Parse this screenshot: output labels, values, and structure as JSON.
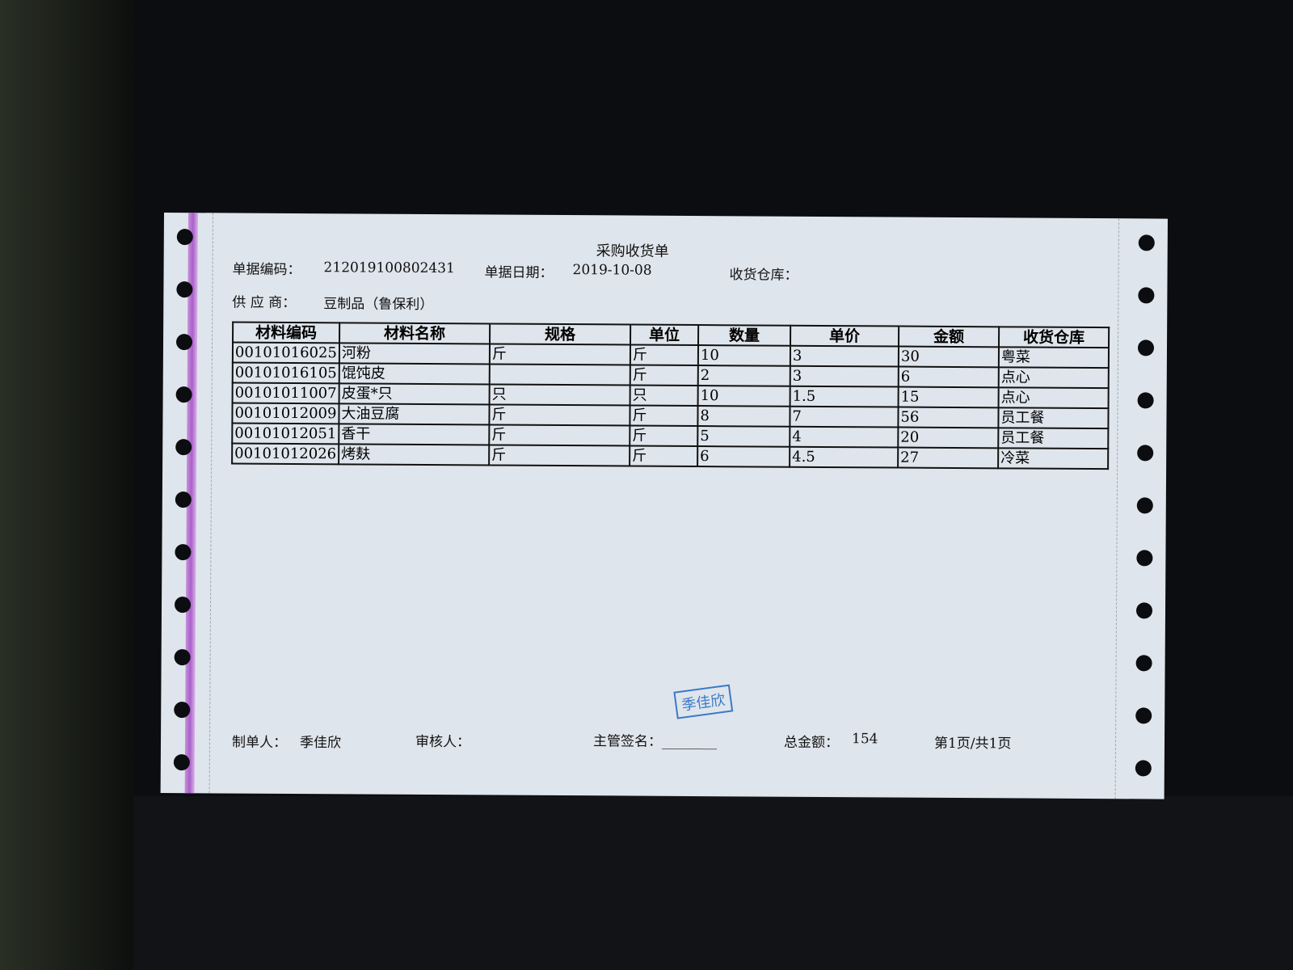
{
  "document": {
    "title": "采购收货单",
    "doc_no_label": "单据编码：",
    "doc_no": "212019100802431",
    "date_label": "单据日期：",
    "date": "2019-10-08",
    "warehouse_label": "收货仓库：",
    "supplier_label": "供 应 商：",
    "supplier": "豆制品（鲁保利）",
    "table": {
      "headers": [
        "材料编码",
        "材料名称",
        "规格",
        "单位",
        "数量",
        "单价",
        "金额",
        "收货仓库"
      ],
      "rows": [
        [
          "00101016025",
          "河粉",
          "斤",
          "斤",
          "10",
          "3",
          "30",
          "粤菜"
        ],
        [
          "00101016105",
          "馄饨皮",
          "",
          "斤",
          "2",
          "3",
          "6",
          "点心"
        ],
        [
          "00101011007",
          "皮蛋*只",
          "只",
          "只",
          "10",
          "1.5",
          "15",
          "点心"
        ],
        [
          "00101012009",
          "大油豆腐",
          "斤",
          "斤",
          "8",
          "7",
          "56",
          "员工餐"
        ],
        [
          "00101012051",
          "香干",
          "斤",
          "斤",
          "5",
          "4",
          "20",
          "员工餐"
        ],
        [
          "00101012026",
          "烤麸",
          "斤",
          "斤",
          "6",
          "4.5",
          "27",
          "冷菜"
        ]
      ]
    },
    "maker_label": "制单人：",
    "maker": "季佳欣",
    "reviewer_label": "审核人：",
    "supervisor_label": "主管签名：________",
    "total_label": "总金额：",
    "total": "154",
    "page": "第1页/共1页",
    "stamp": "季佳欣",
    "stamp_color": "#3a7ac8"
  }
}
